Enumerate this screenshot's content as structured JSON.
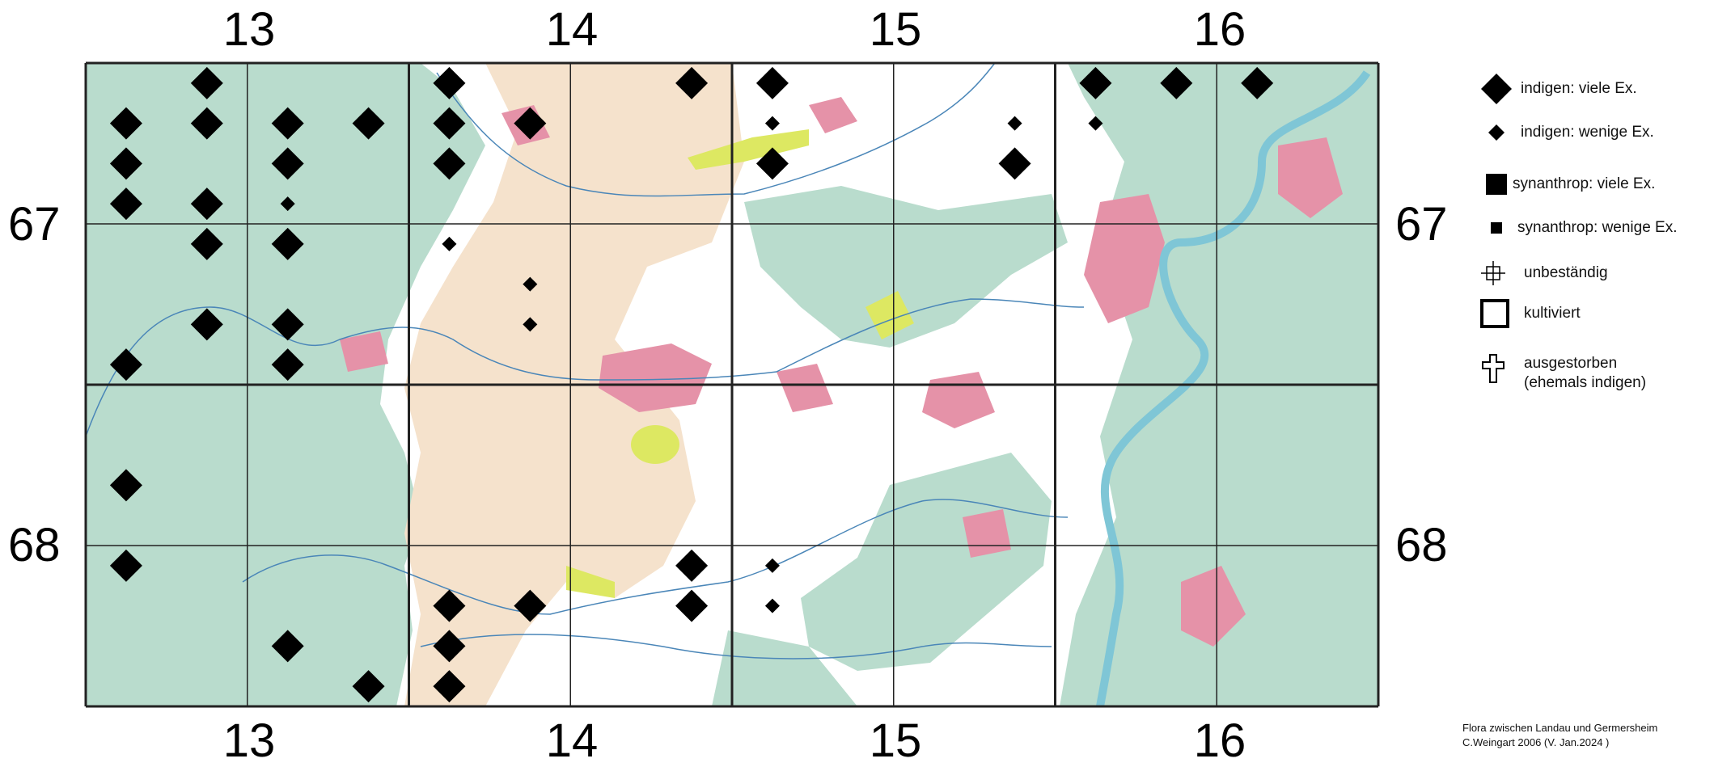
{
  "columns": [
    "13",
    "14",
    "15",
    "16"
  ],
  "rows": [
    "67",
    "68"
  ],
  "legend": [
    {
      "symbol": "diamond-large",
      "label": "indigen: viele Ex."
    },
    {
      "symbol": "diamond-small",
      "label": "indigen: wenige Ex."
    },
    {
      "symbol": "square-large",
      "label": "synanthrop: viele Ex."
    },
    {
      "symbol": "square-small",
      "label": "synanthrop: wenige Ex."
    },
    {
      "symbol": "crosshair",
      "label": "unbeständig"
    },
    {
      "symbol": "square-outline",
      "label": "kultiviert"
    },
    {
      "symbol": "cross-outline",
      "label": "ausgestorben",
      "label2": "(ehemals indigen)"
    }
  ],
  "credit": {
    "line1": "Flora zwischen Landau und Germersheim",
    "line2": "C.Weingart 2006 (V. Jan.2024 )"
  },
  "colors": {
    "forest": "#b9dccd",
    "settlement": "#e592a8",
    "vineyard": "#f5e2cc",
    "meadow": "#dde862",
    "water": "#7fc6d6",
    "grid": "#222222"
  },
  "records": {
    "large": [
      [
        2,
        1
      ],
      [
        5,
        1
      ],
      [
        8,
        1
      ],
      [
        9,
        1
      ],
      [
        13,
        1
      ],
      [
        14,
        1
      ],
      [
        15,
        1
      ],
      [
        1,
        2
      ],
      [
        2,
        2
      ],
      [
        3,
        2
      ],
      [
        4,
        2
      ],
      [
        5,
        2
      ],
      [
        6,
        2
      ],
      [
        1,
        3
      ],
      [
        3,
        3
      ],
      [
        5,
        3
      ],
      [
        9,
        3
      ],
      [
        12,
        3
      ],
      [
        1,
        4
      ],
      [
        2,
        4
      ],
      [
        2,
        5
      ],
      [
        3,
        5
      ],
      [
        2,
        7
      ],
      [
        3,
        7
      ],
      [
        1,
        8
      ],
      [
        3,
        8
      ],
      [
        1,
        11
      ],
      [
        1,
        13
      ],
      [
        8,
        13
      ],
      [
        5,
        14
      ],
      [
        6,
        14
      ],
      [
        8,
        14
      ],
      [
        3,
        15
      ],
      [
        5,
        15
      ],
      [
        4,
        16
      ],
      [
        5,
        16
      ]
    ],
    "small": [
      [
        9,
        2
      ],
      [
        12,
        2
      ],
      [
        13,
        2
      ],
      [
        12,
        3
      ],
      [
        3,
        4
      ],
      [
        5,
        5
      ],
      [
        6,
        6
      ],
      [
        6,
        7
      ],
      [
        9,
        13
      ],
      [
        9,
        14
      ]
    ]
  }
}
